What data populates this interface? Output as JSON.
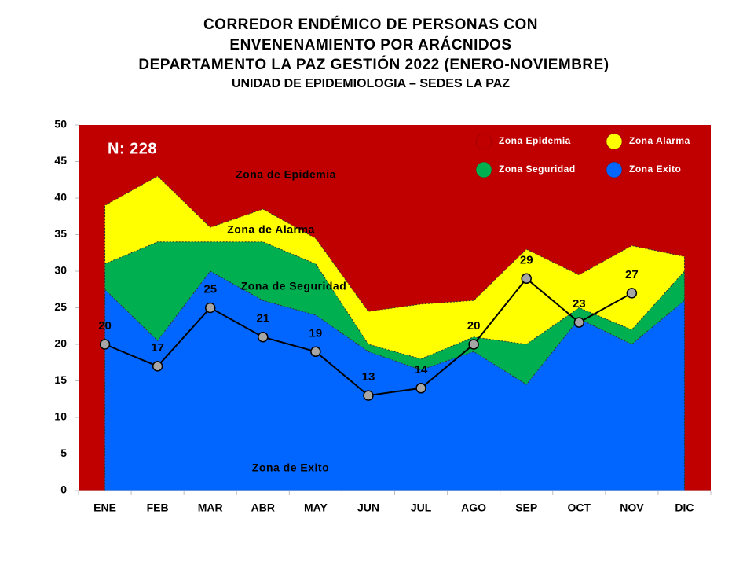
{
  "chart_data": {
    "type": "endemic-corridor",
    "title": [
      "CORREDOR ENDÉMICO DE PERSONAS CON",
      "ENVENENAMIENTO POR ARÁCNIDOS",
      "DEPARTAMENTO  LA PAZ GESTIÓN 2022 (ENERO-NOVIEMBRE)"
    ],
    "subtitle": "UNIDAD DE EPIDEMIOLOGIA – SEDES LA PAZ",
    "categories": [
      "ENE",
      "FEB",
      "MAR",
      "ABR",
      "MAY",
      "JUN",
      "JUL",
      "AGO",
      "SEP",
      "OCT",
      "NOV",
      "DIC"
    ],
    "ylim": [
      0,
      50
    ],
    "yticks": [
      0,
      5,
      10,
      15,
      20,
      25,
      30,
      35,
      40,
      45,
      50
    ],
    "series": [
      {
        "name": "Zona Epidemia",
        "color": "#c00000"
      },
      {
        "name": "Zona Alarma",
        "color": "#ffff00",
        "values": [
          39,
          43,
          36,
          38.5,
          34.5,
          24.5,
          25.5,
          26,
          33,
          29.5,
          33.5,
          32
        ]
      },
      {
        "name": "Zona Seguridad",
        "color": "#00b050",
        "values": [
          31,
          34,
          34,
          34,
          31,
          20,
          18,
          21,
          20,
          25,
          22,
          30
        ]
      },
      {
        "name": "Zona Exito",
        "color": "#0066ff",
        "values": [
          27.5,
          20.5,
          30,
          26,
          24,
          19,
          16.5,
          19,
          14.5,
          23.5,
          20,
          26
        ]
      }
    ],
    "cases": {
      "color": "#000000",
      "marker_color": "#a6a6a6",
      "values": [
        20,
        17,
        25,
        21,
        19,
        13,
        14,
        20,
        29,
        23,
        27,
        null
      ]
    },
    "annotations": [
      "N: 228",
      "Zona de Epidemia",
      "Zona de Alarma",
      "Zona de Seguridad",
      "Zona de Exito"
    ]
  }
}
